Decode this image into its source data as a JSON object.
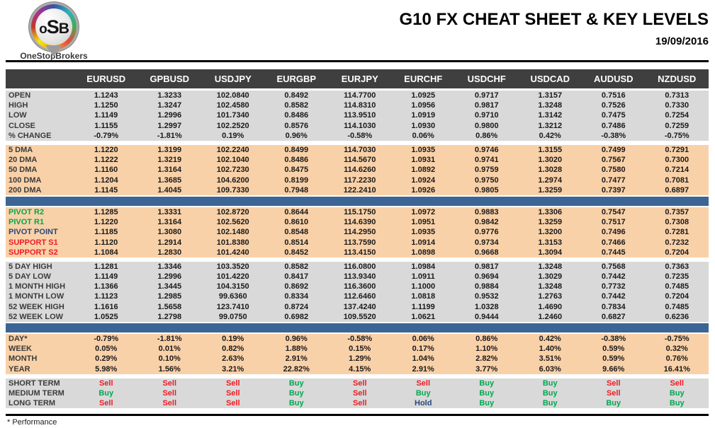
{
  "header": {
    "logo": {
      "o": "o",
      "s": "S",
      "b": "B",
      "brand": "OneStopBrokers"
    },
    "title": "G10 FX CHEAT SHEET & KEY LEVELS",
    "date": "19/09/2016"
  },
  "colors": {
    "header_bg": "#3f3f3f",
    "header_text": "#ffffff",
    "gray": "#d9d9d9",
    "peach": "#f9d1a8",
    "bar": "#3c6595",
    "green": "#00a651",
    "red": "#ee1c25",
    "navy": "#27477a"
  },
  "table": {
    "columns": [
      "EURUSD",
      "GPBUSD",
      "USDJPY",
      "EURGBP",
      "EURJPY",
      "EURCHF",
      "USDCHF",
      "USDCAD",
      "AUDUSD",
      "NZDUSD"
    ],
    "sections": [
      {
        "id": "ohlc",
        "bg": "gray",
        "after": "gap",
        "rows": [
          {
            "label": "OPEN",
            "values": [
              "1.1243",
              "1.3233",
              "102.0840",
              "0.8492",
              "114.7700",
              "1.0925",
              "0.9717",
              "1.3157",
              "0.7516",
              "0.7313"
            ]
          },
          {
            "label": "HIGH",
            "values": [
              "1.1250",
              "1.3247",
              "102.4580",
              "0.8582",
              "114.8310",
              "1.0956",
              "0.9817",
              "1.3248",
              "0.7526",
              "0.7330"
            ]
          },
          {
            "label": "LOW",
            "values": [
              "1.1149",
              "1.2996",
              "101.7340",
              "0.8486",
              "113.9510",
              "1.0919",
              "0.9710",
              "1.3142",
              "0.7475",
              "0.7254"
            ]
          },
          {
            "label": "CLOSE",
            "values": [
              "1.1155",
              "1.2997",
              "102.2520",
              "0.8576",
              "114.1030",
              "1.0930",
              "0.9800",
              "1.3212",
              "0.7486",
              "0.7259"
            ]
          },
          {
            "label": "% CHANGE",
            "values": [
              "-0.79%",
              "-1.81%",
              "0.19%",
              "0.96%",
              "-0.58%",
              "0.06%",
              "0.86%",
              "0.42%",
              "-0.38%",
              "-0.75%"
            ]
          }
        ]
      },
      {
        "id": "dma",
        "bg": "peach",
        "after": "bar",
        "rows": [
          {
            "label": "5 DMA",
            "values": [
              "1.1220",
              "1.3199",
              "102.2240",
              "0.8499",
              "114.7030",
              "1.0935",
              "0.9746",
              "1.3155",
              "0.7499",
              "0.7291"
            ]
          },
          {
            "label": "20 DMA",
            "values": [
              "1.1222",
              "1.3219",
              "102.1040",
              "0.8486",
              "114.5670",
              "1.0931",
              "0.9741",
              "1.3020",
              "0.7567",
              "0.7300"
            ]
          },
          {
            "label": "50 DMA",
            "values": [
              "1.1160",
              "1.3164",
              "102.7230",
              "0.8475",
              "114.6260",
              "1.0892",
              "0.9759",
              "1.3028",
              "0.7580",
              "0.7214"
            ]
          },
          {
            "label": "100 DMA",
            "values": [
              "1.1204",
              "1.3685",
              "104.6200",
              "0.8199",
              "117.2230",
              "1.0924",
              "0.9750",
              "1.2974",
              "0.7477",
              "0.7081"
            ]
          },
          {
            "label": "200 DMA",
            "values": [
              "1.1145",
              "1.4045",
              "109.7330",
              "0.7948",
              "122.2410",
              "1.0926",
              "0.9805",
              "1.3259",
              "0.7397",
              "0.6897"
            ]
          }
        ]
      },
      {
        "id": "pivots",
        "bg": "peach",
        "after": "gap",
        "rows": [
          {
            "label": "PIVOT R2",
            "label_color": "green",
            "values": [
              "1.1285",
              "1.3331",
              "102.8720",
              "0.8644",
              "115.1750",
              "1.0972",
              "0.9883",
              "1.3306",
              "0.7547",
              "0.7357"
            ]
          },
          {
            "label": "PIVOT R1",
            "label_color": "green",
            "values": [
              "1.1220",
              "1.3164",
              "102.5620",
              "0.8610",
              "114.6390",
              "1.0951",
              "0.9842",
              "1.3259",
              "0.7517",
              "0.7308"
            ]
          },
          {
            "label": "PIVOT POINT",
            "label_color": "navy",
            "values": [
              "1.1185",
              "1.3080",
              "102.1480",
              "0.8548",
              "114.2950",
              "1.0935",
              "0.9776",
              "1.3200",
              "0.7496",
              "0.7281"
            ]
          },
          {
            "label": "SUPPORT S1",
            "label_color": "red",
            "values": [
              "1.1120",
              "1.2914",
              "101.8380",
              "0.8514",
              "113.7590",
              "1.0914",
              "0.9734",
              "1.3153",
              "0.7466",
              "0.7232"
            ]
          },
          {
            "label": "SUPPORT S2",
            "label_color": "red",
            "values": [
              "1.1084",
              "1.2830",
              "101.4240",
              "0.8452",
              "113.4150",
              "1.0898",
              "0.9668",
              "1.3094",
              "0.7445",
              "0.7204"
            ]
          }
        ]
      },
      {
        "id": "ranges",
        "bg": "gray",
        "after": "bar",
        "rows": [
          {
            "label": "5 DAY HIGH",
            "values": [
              "1.1281",
              "1.3346",
              "103.3520",
              "0.8582",
              "116.0800",
              "1.0984",
              "0.9817",
              "1.3248",
              "0.7568",
              "0.7363"
            ]
          },
          {
            "label": "5 DAY LOW",
            "values": [
              "1.1149",
              "1.2996",
              "101.4220",
              "0.8417",
              "113.9340",
              "1.0911",
              "0.9694",
              "1.3029",
              "0.7442",
              "0.7235"
            ]
          },
          {
            "label": "1 MONTH HIGH",
            "values": [
              "1.1366",
              "1.3445",
              "104.3150",
              "0.8692",
              "116.3600",
              "1.1000",
              "0.9884",
              "1.3248",
              "0.7732",
              "0.7485"
            ]
          },
          {
            "label": "1 MONTH LOW",
            "values": [
              "1.1123",
              "1.2985",
              "99.6360",
              "0.8334",
              "112.6460",
              "1.0818",
              "0.9532",
              "1.2763",
              "0.7442",
              "0.7204"
            ]
          },
          {
            "label": "52 WEEK HIGH",
            "values": [
              "1.1616",
              "1.5658",
              "123.7410",
              "0.8724",
              "137.4240",
              "1.1199",
              "1.0328",
              "1.4690",
              "0.7834",
              "0.7485"
            ]
          },
          {
            "label": "52 WEEK LOW",
            "values": [
              "1.0525",
              "1.2798",
              "99.0750",
              "0.6982",
              "109.5520",
              "1.0621",
              "0.9444",
              "1.2460",
              "0.6827",
              "0.6236"
            ]
          }
        ]
      },
      {
        "id": "performance",
        "bg": "peach",
        "after": "gap",
        "rows": [
          {
            "label": "DAY*",
            "values": [
              "-0.79%",
              "-1.81%",
              "0.19%",
              "0.96%",
              "-0.58%",
              "0.06%",
              "0.86%",
              "0.42%",
              "-0.38%",
              "-0.75%"
            ]
          },
          {
            "label": "WEEK",
            "values": [
              "0.05%",
              "0.01%",
              "0.82%",
              "1.88%",
              "0.15%",
              "0.17%",
              "1.10%",
              "1.40%",
              "0.59%",
              "0.32%"
            ]
          },
          {
            "label": "MONTH",
            "values": [
              "0.29%",
              "0.10%",
              "2.63%",
              "2.91%",
              "1.29%",
              "1.04%",
              "2.82%",
              "3.51%",
              "0.59%",
              "0.76%"
            ]
          },
          {
            "label": "YEAR",
            "values": [
              "5.98%",
              "1.56%",
              "3.21%",
              "22.82%",
              "4.15%",
              "2.91%",
              "3.77%",
              "6.03%",
              "9.66%",
              "16.41%"
            ]
          }
        ]
      },
      {
        "id": "signals",
        "bg": "gray",
        "after": "none",
        "value_colors": {
          "Buy": "green",
          "Sell": "red",
          "Hold": "navy"
        },
        "rows": [
          {
            "label": "SHORT TERM",
            "values": [
              "Sell",
              "Sell",
              "Sell",
              "Buy",
              "Sell",
              "Sell",
              "Buy",
              "Buy",
              "Sell",
              "Sell"
            ]
          },
          {
            "label": "MEDIUM TERM",
            "values": [
              "Buy",
              "Sell",
              "Sell",
              "Buy",
              "Sell",
              "Buy",
              "Buy",
              "Buy",
              "Sell",
              "Buy"
            ]
          },
          {
            "label": "LONG TERM",
            "values": [
              "Sell",
              "Sell",
              "Sell",
              "Buy",
              "Sell",
              "Hold",
              "Buy",
              "Buy",
              "Buy",
              "Buy"
            ]
          }
        ]
      }
    ]
  },
  "footer": {
    "note": "* Performance"
  }
}
